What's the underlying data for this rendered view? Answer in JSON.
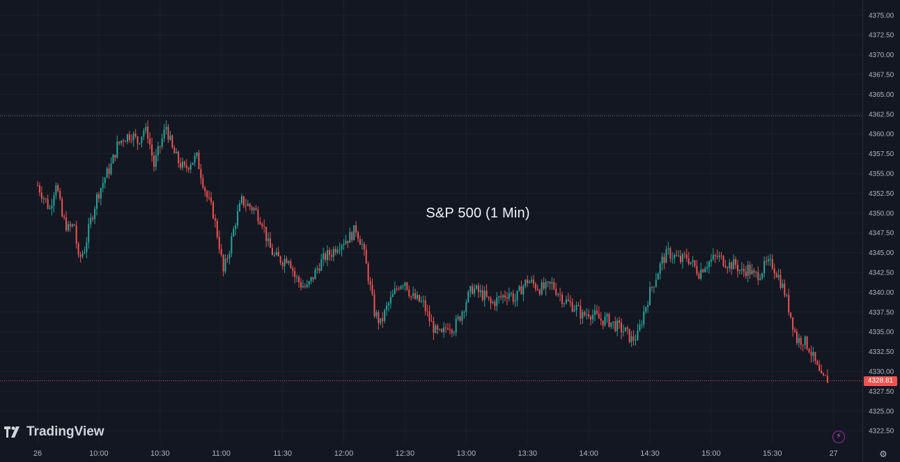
{
  "chart_data": {
    "type": "candlestick",
    "title": "S&P 500 (1 Min)",
    "interval": "1 Min",
    "ylim": [
      4320.0,
      4377.5
    ],
    "xlim": [
      "09:30",
      "15:59"
    ],
    "y_ticks": [
      "4375.00",
      "4372.50",
      "4370.00",
      "4367.50",
      "4365.00",
      "4362.50",
      "4360.00",
      "4357.50",
      "4355.00",
      "4352.50",
      "4350.00",
      "4347.50",
      "4345.00",
      "4342.50",
      "4340.00",
      "4337.50",
      "4335.00",
      "4332.50",
      "4330.00",
      "4327.50",
      "4325.00",
      "4322.50"
    ],
    "x_ticks": [
      {
        "label": "26",
        "time": "09:30"
      },
      {
        "label": "10:00",
        "time": "10:00"
      },
      {
        "label": "10:30",
        "time": "10:30"
      },
      {
        "label": "11:00",
        "time": "11:00"
      },
      {
        "label": "11:30",
        "time": "11:30"
      },
      {
        "label": "12:00",
        "time": "12:00"
      },
      {
        "label": "12:30",
        "time": "12:30"
      },
      {
        "label": "13:00",
        "time": "13:00"
      },
      {
        "label": "13:30",
        "time": "13:30"
      },
      {
        "label": "14:00",
        "time": "14:00"
      },
      {
        "label": "14:30",
        "time": "14:30"
      },
      {
        "label": "15:00",
        "time": "15:00"
      },
      {
        "label": "15:30",
        "time": "15:30"
      },
      {
        "label": "27",
        "time": "16:00"
      }
    ],
    "close_path": [
      [
        "09:30",
        4353.5
      ],
      [
        "09:33",
        4352.0
      ],
      [
        "09:36",
        4350.5
      ],
      [
        "09:39",
        4354.0
      ],
      [
        "09:42",
        4349.5
      ],
      [
        "09:45",
        4348.0
      ],
      [
        "09:48",
        4348.5
      ],
      [
        "09:50",
        4344.0
      ],
      [
        "09:53",
        4345.5
      ],
      [
        "09:56",
        4349.0
      ],
      [
        "09:59",
        4352.0
      ],
      [
        "10:03",
        4354.5
      ],
      [
        "10:06",
        4356.0
      ],
      [
        "10:09",
        4358.5
      ],
      [
        "10:12",
        4359.5
      ],
      [
        "10:16",
        4360.0
      ],
      [
        "10:19",
        4359.0
      ],
      [
        "10:22",
        4360.5
      ],
      [
        "10:24",
        4360.0
      ],
      [
        "10:27",
        4356.0
      ],
      [
        "10:30",
        4358.5
      ],
      [
        "10:33",
        4361.0
      ],
      [
        "10:36",
        4358.0
      ],
      [
        "10:39",
        4356.5
      ],
      [
        "10:42",
        4355.5
      ],
      [
        "10:45",
        4356.5
      ],
      [
        "10:48",
        4357.0
      ],
      [
        "10:50",
        4355.0
      ],
      [
        "10:53",
        4352.0
      ],
      [
        "10:56",
        4350.0
      ],
      [
        "10:59",
        4346.0
      ],
      [
        "11:01",
        4342.5
      ],
      [
        "11:04",
        4345.5
      ],
      [
        "11:07",
        4349.0
      ],
      [
        "11:10",
        4351.5
      ],
      [
        "11:13",
        4351.0
      ],
      [
        "11:16",
        4350.5
      ],
      [
        "11:20",
        4349.0
      ],
      [
        "11:23",
        4346.0
      ],
      [
        "11:26",
        4344.5
      ],
      [
        "11:30",
        4344.0
      ],
      [
        "11:33",
        4344.5
      ],
      [
        "11:36",
        4342.0
      ],
      [
        "11:39",
        4341.0
      ],
      [
        "11:42",
        4340.5
      ],
      [
        "11:45",
        4342.0
      ],
      [
        "11:48",
        4343.5
      ],
      [
        "11:51",
        4344.5
      ],
      [
        "11:54",
        4345.0
      ],
      [
        "11:57",
        4346.0
      ],
      [
        "12:00",
        4346.5
      ],
      [
        "12:03",
        4347.0
      ],
      [
        "12:06",
        4348.0
      ],
      [
        "12:09",
        4346.0
      ],
      [
        "12:12",
        4342.0
      ],
      [
        "12:15",
        4337.5
      ],
      [
        "12:18",
        4336.0
      ],
      [
        "12:21",
        4338.0
      ],
      [
        "12:24",
        4339.5
      ],
      [
        "12:27",
        4341.0
      ],
      [
        "12:30",
        4341.5
      ],
      [
        "12:33",
        4339.5
      ],
      [
        "12:36",
        4339.0
      ],
      [
        "12:39",
        4338.5
      ],
      [
        "12:42",
        4336.5
      ],
      [
        "12:45",
        4335.0
      ],
      [
        "12:48",
        4334.5
      ],
      [
        "12:51",
        4336.0
      ],
      [
        "12:54",
        4335.5
      ],
      [
        "12:57",
        4337.0
      ],
      [
        "13:00",
        4339.0
      ],
      [
        "13:03",
        4340.5
      ],
      [
        "13:06",
        4340.0
      ],
      [
        "13:09",
        4339.5
      ],
      [
        "13:12",
        4338.5
      ],
      [
        "13:15",
        4339.0
      ],
      [
        "13:18",
        4339.5
      ],
      [
        "13:21",
        4340.0
      ],
      [
        "13:24",
        4339.0
      ],
      [
        "13:27",
        4340.5
      ],
      [
        "13:30",
        4341.5
      ],
      [
        "13:33",
        4341.0
      ],
      [
        "13:36",
        4340.5
      ],
      [
        "13:39",
        4340.5
      ],
      [
        "13:42",
        4341.0
      ],
      [
        "13:45",
        4340.0
      ],
      [
        "13:48",
        4339.0
      ],
      [
        "13:51",
        4338.5
      ],
      [
        "13:54",
        4338.0
      ],
      [
        "13:57",
        4337.0
      ],
      [
        "14:00",
        4337.5
      ],
      [
        "14:03",
        4337.0
      ],
      [
        "14:06",
        4336.5
      ],
      [
        "14:09",
        4336.5
      ],
      [
        "14:12",
        4336.0
      ],
      [
        "14:15",
        4335.5
      ],
      [
        "14:18",
        4335.0
      ],
      [
        "14:21",
        4334.0
      ],
      [
        "14:24",
        4334.5
      ],
      [
        "14:27",
        4337.5
      ],
      [
        "14:30",
        4340.0
      ],
      [
        "14:33",
        4342.0
      ],
      [
        "14:36",
        4344.0
      ],
      [
        "14:39",
        4345.0
      ],
      [
        "14:42",
        4344.5
      ],
      [
        "14:45",
        4344.0
      ],
      [
        "14:48",
        4344.5
      ],
      [
        "14:51",
        4343.5
      ],
      [
        "14:54",
        4342.5
      ],
      [
        "14:57",
        4343.5
      ],
      [
        "15:00",
        4344.0
      ],
      [
        "15:03",
        4344.5
      ],
      [
        "15:06",
        4344.0
      ],
      [
        "15:09",
        4343.5
      ],
      [
        "15:12",
        4343.5
      ],
      [
        "15:15",
        4342.5
      ],
      [
        "15:18",
        4343.0
      ],
      [
        "15:21",
        4342.0
      ],
      [
        "15:24",
        4342.5
      ],
      [
        "15:27",
        4343.5
      ],
      [
        "15:30",
        4343.5
      ],
      [
        "15:33",
        4342.0
      ],
      [
        "15:36",
        4340.0
      ],
      [
        "15:39",
        4337.0
      ],
      [
        "15:42",
        4334.0
      ],
      [
        "15:45",
        4334.0
      ],
      [
        "15:48",
        4333.0
      ],
      [
        "15:51",
        4331.0
      ],
      [
        "15:54",
        4329.0
      ],
      [
        "15:57",
        4329.0
      ]
    ],
    "last_price": "4328.81",
    "reference_high": 4362.3,
    "colors": {
      "up": "#26a69a",
      "down": "#ef5350",
      "background": "#131722",
      "grid": "#1c202b",
      "axis_text": "#b2b5be",
      "price_line": "#ef5350",
      "high_line": "#787b86"
    },
    "grid": true
  },
  "branding": {
    "logo_text": "TradingView"
  },
  "icons": {
    "logo": "tradingview-logo-icon",
    "lightning": "lightning-icon",
    "settings": "settings-gear-icon"
  }
}
